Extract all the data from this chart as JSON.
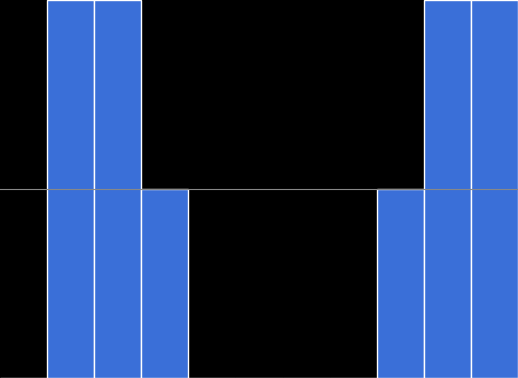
{
  "bar_heights": [
    0,
    2,
    2,
    1,
    0,
    0,
    0,
    0,
    1,
    2,
    2
  ],
  "bar_color": "#3a6fd8",
  "background_color": "#000000",
  "edge_color": "#ffffff",
  "edge_width": 1.0,
  "ylim": [
    0,
    2
  ],
  "xlim": [
    0,
    11
  ],
  "grid_y": [
    1
  ],
  "grid_color": "#888888",
  "grid_linewidth": 0.8,
  "figsize": [
    5.18,
    3.78
  ],
  "dpi": 100
}
